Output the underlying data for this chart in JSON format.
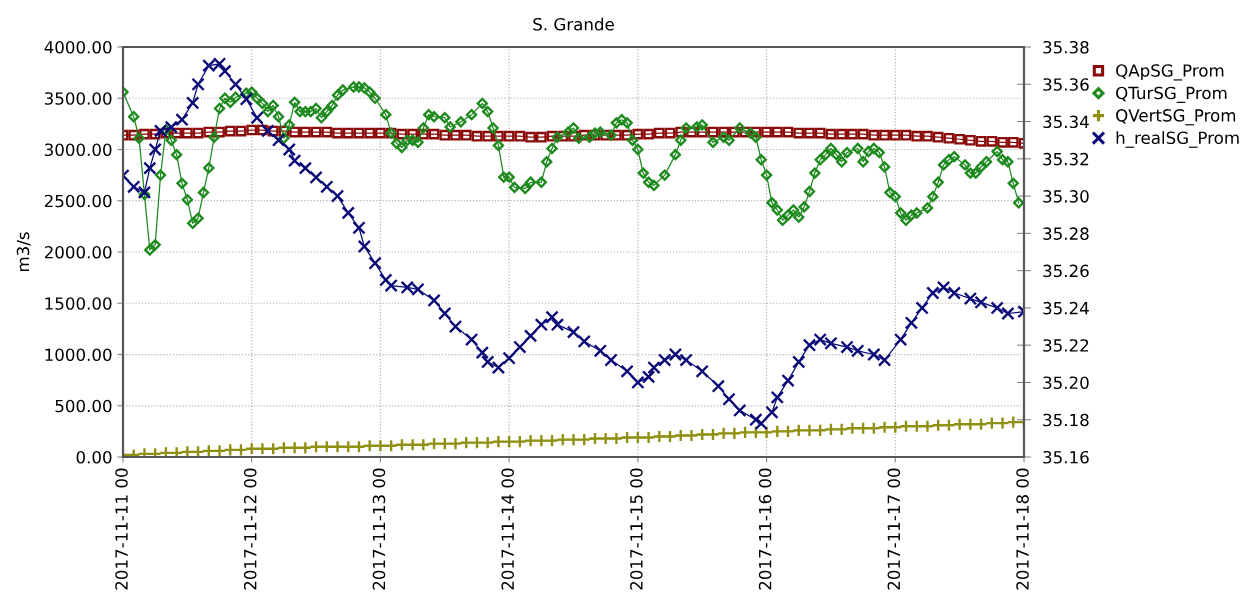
{
  "chart_data": {
    "type": "line",
    "title": "S. Grande",
    "ylabel": "m3/s",
    "legend": "right",
    "grid": true,
    "line_style": "solid",
    "xlim": [
      "2017-11-11T00:00",
      "2017-11-18T00:00"
    ],
    "xticks": [
      {
        "value": "2017-11-11T00:00",
        "label": "2017-11-11 00"
      },
      {
        "value": "2017-11-12T00:00",
        "label": "2017-11-12 00"
      },
      {
        "value": "2017-11-13T00:00",
        "label": "2017-11-13 00"
      },
      {
        "value": "2017-11-14T00:00",
        "label": "2017-11-14 00"
      },
      {
        "value": "2017-11-15T00:00",
        "label": "2017-11-15 00"
      },
      {
        "value": "2017-11-16T00:00",
        "label": "2017-11-16 00"
      },
      {
        "value": "2017-11-17T00:00",
        "label": "2017-11-17 00"
      },
      {
        "value": "2017-11-18T00:00",
        "label": "2017-11-18 00"
      }
    ],
    "ylim": [
      0,
      4000
    ],
    "yticks": [
      {
        "value": 0,
        "label": "0.00"
      },
      {
        "value": 500,
        "label": "500.00"
      },
      {
        "value": 1000,
        "label": "1000.00"
      },
      {
        "value": 1500,
        "label": "1500.00"
      },
      {
        "value": 2000,
        "label": "2000.00"
      },
      {
        "value": 2500,
        "label": "2500.00"
      },
      {
        "value": 3000,
        "label": "3000.00"
      },
      {
        "value": 3500,
        "label": "3500.00"
      },
      {
        "value": 4000,
        "label": "4000.00"
      }
    ],
    "y2lim": [
      35.16,
      35.38
    ],
    "y2ticks": [
      35.16,
      35.18,
      {
        "value": 35.2,
        "label": "35.20"
      },
      35.22,
      35.24,
      35.26,
      35.28,
      {
        "value": 35.3,
        "label": "35.30"
      },
      35.32,
      35.34,
      35.36,
      35.38
    ],
    "series": [
      {
        "name": "QApSG_Prom",
        "color": "#8b0a0a",
        "marker": "square",
        "x": [
          "2017-11-11T00:00",
          "2017-11-11T02:00",
          "2017-11-11T04:00",
          "2017-11-11T06:00",
          "2017-11-11T08:00",
          "2017-11-11T10:00",
          "2017-11-11T12:00",
          "2017-11-11T14:00",
          "2017-11-11T16:00",
          "2017-11-11T18:00",
          "2017-11-11T20:00",
          "2017-11-11T22:00",
          "2017-11-12T00:00",
          "2017-11-12T02:00",
          "2017-11-12T04:00",
          "2017-11-12T06:00",
          "2017-11-12T08:00",
          "2017-11-12T10:00",
          "2017-11-12T12:00",
          "2017-11-12T14:00",
          "2017-11-12T16:00",
          "2017-11-12T18:00",
          "2017-11-12T20:00",
          "2017-11-12T22:00",
          "2017-11-13T00:00",
          "2017-11-13T02:00",
          "2017-11-13T04:00",
          "2017-11-13T06:00",
          "2017-11-13T08:00",
          "2017-11-13T10:00",
          "2017-11-13T12:00",
          "2017-11-13T14:00",
          "2017-11-13T16:00",
          "2017-11-13T18:00",
          "2017-11-13T20:00",
          "2017-11-13T22:00",
          "2017-11-14T00:00",
          "2017-11-14T02:00",
          "2017-11-14T04:00",
          "2017-11-14T06:00",
          "2017-11-14T08:00",
          "2017-11-14T10:00",
          "2017-11-14T12:00",
          "2017-11-14T14:00",
          "2017-11-14T16:00",
          "2017-11-14T18:00",
          "2017-11-14T20:00",
          "2017-11-14T22:00",
          "2017-11-15T00:00",
          "2017-11-15T02:00",
          "2017-11-15T04:00",
          "2017-11-15T06:00",
          "2017-11-15T08:00",
          "2017-11-15T10:00",
          "2017-11-15T12:00",
          "2017-11-15T14:00",
          "2017-11-15T16:00",
          "2017-11-15T18:00",
          "2017-11-15T20:00",
          "2017-11-15T22:00",
          "2017-11-16T00:00",
          "2017-11-16T02:00",
          "2017-11-16T04:00",
          "2017-11-16T06:00",
          "2017-11-16T08:00",
          "2017-11-16T10:00",
          "2017-11-16T12:00",
          "2017-11-16T14:00",
          "2017-11-16T16:00",
          "2017-11-16T18:00",
          "2017-11-16T20:00",
          "2017-11-16T22:00",
          "2017-11-17T00:00",
          "2017-11-17T02:00",
          "2017-11-17T04:00",
          "2017-11-17T06:00",
          "2017-11-17T08:00",
          "2017-11-17T10:00",
          "2017-11-17T12:00",
          "2017-11-17T14:00",
          "2017-11-17T16:00",
          "2017-11-17T18:00",
          "2017-11-17T20:00",
          "2017-11-17T22:00",
          "2017-11-18T00:00"
        ],
        "values": [
          3140,
          3140,
          3150,
          3150,
          3160,
          3160,
          3160,
          3160,
          3170,
          3170,
          3180,
          3180,
          3190,
          3190,
          3180,
          3180,
          3170,
          3170,
          3170,
          3170,
          3160,
          3160,
          3160,
          3160,
          3160,
          3160,
          3150,
          3150,
          3150,
          3150,
          3140,
          3140,
          3140,
          3130,
          3130,
          3130,
          3130,
          3130,
          3120,
          3120,
          3130,
          3130,
          3130,
          3140,
          3140,
          3140,
          3140,
          3140,
          3150,
          3150,
          3160,
          3160,
          3170,
          3170,
          3170,
          3170,
          3170,
          3170,
          3170,
          3170,
          3170,
          3170,
          3170,
          3160,
          3160,
          3160,
          3150,
          3150,
          3150,
          3150,
          3140,
          3140,
          3140,
          3140,
          3130,
          3130,
          3120,
          3110,
          3100,
          3090,
          3080,
          3080,
          3070,
          3070,
          3060
        ]
      },
      {
        "name": "QTurSG_Prom",
        "color": "#1f8a1f",
        "marker": "diamond",
        "x": [
          "2017-11-11T00:00",
          "2017-11-11T02:00",
          "2017-11-11T03:00",
          "2017-11-11T04:00",
          "2017-11-11T05:00",
          "2017-11-11T06:00",
          "2017-11-11T07:00",
          "2017-11-11T08:00",
          "2017-11-11T09:00",
          "2017-11-11T10:00",
          "2017-11-11T11:00",
          "2017-11-11T12:00",
          "2017-11-11T13:00",
          "2017-11-11T14:00",
          "2017-11-11T15:00",
          "2017-11-11T16:00",
          "2017-11-11T17:00",
          "2017-11-11T18:00",
          "2017-11-11T19:00",
          "2017-11-11T20:00",
          "2017-11-11T21:00",
          "2017-11-11T23:00",
          "2017-11-12T00:00",
          "2017-11-12T01:00",
          "2017-11-12T02:00",
          "2017-11-12T03:00",
          "2017-11-12T04:00",
          "2017-11-12T05:00",
          "2017-11-12T06:00",
          "2017-11-12T07:00",
          "2017-11-12T08:00",
          "2017-11-12T09:00",
          "2017-11-12T10:00",
          "2017-11-12T11:00",
          "2017-11-12T12:00",
          "2017-11-12T13:00",
          "2017-11-12T14:00",
          "2017-11-12T15:00",
          "2017-11-12T16:00",
          "2017-11-12T17:00",
          "2017-11-12T19:00",
          "2017-11-12T20:00",
          "2017-11-12T21:00",
          "2017-11-12T22:00",
          "2017-11-12T23:00",
          "2017-11-13T01:00",
          "2017-11-13T02:00",
          "2017-11-13T03:00",
          "2017-11-13T04:00",
          "2017-11-13T05:00",
          "2017-11-13T06:00",
          "2017-11-13T07:00",
          "2017-11-13T08:00",
          "2017-11-13T09:00",
          "2017-11-13T10:00",
          "2017-11-13T12:00",
          "2017-11-13T13:00",
          "2017-11-13T15:00",
          "2017-11-13T17:00",
          "2017-11-13T19:00",
          "2017-11-13T20:00",
          "2017-11-13T21:00",
          "2017-11-13T22:00",
          "2017-11-13T23:00",
          "2017-11-14T00:00",
          "2017-11-14T01:00",
          "2017-11-14T03:00",
          "2017-11-14T04:00",
          "2017-11-14T06:00",
          "2017-11-14T07:00",
          "2017-11-14T08:00",
          "2017-11-14T09:00",
          "2017-11-14T11:00",
          "2017-11-14T12:00",
          "2017-11-14T13:00",
          "2017-11-14T15:00",
          "2017-11-14T16:00",
          "2017-11-14T17:00",
          "2017-11-14T19:00",
          "2017-11-14T20:00",
          "2017-11-14T21:00",
          "2017-11-14T22:00",
          "2017-11-14T23:00",
          "2017-11-15T00:00",
          "2017-11-15T01:00",
          "2017-11-15T02:00",
          "2017-11-15T03:00",
          "2017-11-15T05:00",
          "2017-11-15T07:00",
          "2017-11-15T08:00",
          "2017-11-15T09:00",
          "2017-11-15T11:00",
          "2017-11-15T12:00",
          "2017-11-15T14:00",
          "2017-11-15T16:00",
          "2017-11-15T17:00",
          "2017-11-15T19:00",
          "2017-11-15T21:00",
          "2017-11-15T22:00",
          "2017-11-15T23:00",
          "2017-11-16T00:00",
          "2017-11-16T01:00",
          "2017-11-16T02:00",
          "2017-11-16T03:00",
          "2017-11-16T04:00",
          "2017-11-16T05:00",
          "2017-11-16T06:00",
          "2017-11-16T07:00",
          "2017-11-16T08:00",
          "2017-11-16T09:00",
          "2017-11-16T10:00",
          "2017-11-16T11:00",
          "2017-11-16T12:00",
          "2017-11-16T13:00",
          "2017-11-16T14:00",
          "2017-11-16T15:00",
          "2017-11-16T17:00",
          "2017-11-16T18:00",
          "2017-11-16T19:00",
          "2017-11-16T20:00",
          "2017-11-16T21:00",
          "2017-11-16T22:00",
          "2017-11-16T23:00",
          "2017-11-17T00:00",
          "2017-11-17T01:00",
          "2017-11-17T02:00",
          "2017-11-17T03:00",
          "2017-11-17T04:00",
          "2017-11-17T06:00",
          "2017-11-17T07:00",
          "2017-11-17T08:00",
          "2017-11-17T09:00",
          "2017-11-17T10:00",
          "2017-11-17T11:00",
          "2017-11-17T13:00",
          "2017-11-17T14:00",
          "2017-11-17T15:00",
          "2017-11-17T16:00",
          "2017-11-17T17:00",
          "2017-11-17T19:00",
          "2017-11-17T20:00",
          "2017-11-17T21:00",
          "2017-11-17T22:00",
          "2017-11-17T23:00"
        ],
        "values": [
          3560,
          3320,
          3110,
          2560,
          2020,
          2070,
          2750,
          3190,
          3090,
          2950,
          2670,
          2510,
          2280,
          2330,
          2580,
          2820,
          3120,
          3400,
          3500,
          3460,
          3510,
          3550,
          3560,
          3500,
          3450,
          3370,
          3430,
          3320,
          3110,
          3240,
          3460,
          3370,
          3370,
          3370,
          3400,
          3310,
          3370,
          3430,
          3530,
          3580,
          3610,
          3610,
          3600,
          3560,
          3500,
          3340,
          3160,
          3060,
          3020,
          3090,
          3090,
          3070,
          3210,
          3340,
          3320,
          3310,
          3220,
          3270,
          3340,
          3450,
          3370,
          3210,
          3040,
          2730,
          2730,
          2630,
          2620,
          2680,
          2680,
          2880,
          3010,
          3120,
          3170,
          3210,
          3110,
          3120,
          3160,
          3170,
          3140,
          3260,
          3290,
          3260,
          3090,
          3000,
          2770,
          2680,
          2650,
          2750,
          2950,
          3090,
          3210,
          3220,
          3240,
          3070,
          3120,
          3090,
          3210,
          3160,
          3120,
          2900,
          2750,
          2480,
          2410,
          2310,
          2360,
          2410,
          2340,
          2440,
          2590,
          2770,
          2900,
          2950,
          3010,
          2950,
          2880,
          2970,
          3010,
          2880,
          2980,
          3010,
          2970,
          2830,
          2580,
          2540,
          2380,
          2310,
          2360,
          2380,
          2430,
          2540,
          2680,
          2850,
          2900,
          2930,
          2850,
          2770,
          2770,
          2830,
          2880,
          2980,
          2900,
          2880,
          2670,
          2480
        ]
      },
      {
        "name": "QVertSG_Prom",
        "color": "#8f8f10",
        "marker": "plus",
        "x": [
          "2017-11-11T00:00",
          "2017-11-11T02:00",
          "2017-11-11T04:00",
          "2017-11-11T06:00",
          "2017-11-11T08:00",
          "2017-11-11T10:00",
          "2017-11-11T12:00",
          "2017-11-11T14:00",
          "2017-11-11T16:00",
          "2017-11-11T18:00",
          "2017-11-11T20:00",
          "2017-11-11T22:00",
          "2017-11-12T00:00",
          "2017-11-12T02:00",
          "2017-11-12T04:00",
          "2017-11-12T06:00",
          "2017-11-12T08:00",
          "2017-11-12T10:00",
          "2017-11-12T12:00",
          "2017-11-12T14:00",
          "2017-11-12T16:00",
          "2017-11-12T18:00",
          "2017-11-12T20:00",
          "2017-11-12T22:00",
          "2017-11-13T00:00",
          "2017-11-13T02:00",
          "2017-11-13T04:00",
          "2017-11-13T06:00",
          "2017-11-13T08:00",
          "2017-11-13T10:00",
          "2017-11-13T12:00",
          "2017-11-13T14:00",
          "2017-11-13T16:00",
          "2017-11-13T18:00",
          "2017-11-13T20:00",
          "2017-11-13T22:00",
          "2017-11-14T00:00",
          "2017-11-14T02:00",
          "2017-11-14T04:00",
          "2017-11-14T06:00",
          "2017-11-14T08:00",
          "2017-11-14T10:00",
          "2017-11-14T12:00",
          "2017-11-14T14:00",
          "2017-11-14T16:00",
          "2017-11-14T18:00",
          "2017-11-14T20:00",
          "2017-11-14T22:00",
          "2017-11-15T00:00",
          "2017-11-15T02:00",
          "2017-11-15T04:00",
          "2017-11-15T06:00",
          "2017-11-15T08:00",
          "2017-11-15T10:00",
          "2017-11-15T12:00",
          "2017-11-15T14:00",
          "2017-11-15T16:00",
          "2017-11-15T18:00",
          "2017-11-15T20:00",
          "2017-11-15T22:00",
          "2017-11-16T00:00",
          "2017-11-16T02:00",
          "2017-11-16T04:00",
          "2017-11-16T06:00",
          "2017-11-16T08:00",
          "2017-11-16T10:00",
          "2017-11-16T12:00",
          "2017-11-16T14:00",
          "2017-11-16T16:00",
          "2017-11-16T18:00",
          "2017-11-16T20:00",
          "2017-11-16T22:00",
          "2017-11-17T00:00",
          "2017-11-17T02:00",
          "2017-11-17T04:00",
          "2017-11-17T06:00",
          "2017-11-17T08:00",
          "2017-11-17T10:00",
          "2017-11-17T12:00",
          "2017-11-17T14:00",
          "2017-11-17T16:00",
          "2017-11-17T18:00",
          "2017-11-17T20:00",
          "2017-11-17T22:00",
          "2017-11-18T00:00"
        ],
        "values": [
          20,
          20,
          30,
          30,
          40,
          40,
          50,
          50,
          60,
          60,
          70,
          70,
          80,
          80,
          80,
          90,
          90,
          90,
          100,
          100,
          100,
          100,
          100,
          110,
          110,
          110,
          120,
          120,
          120,
          130,
          130,
          130,
          140,
          140,
          140,
          150,
          150,
          150,
          160,
          160,
          160,
          170,
          170,
          170,
          180,
          180,
          180,
          190,
          190,
          190,
          200,
          200,
          210,
          210,
          220,
          220,
          230,
          230,
          240,
          240,
          240,
          250,
          250,
          260,
          260,
          260,
          270,
          270,
          280,
          280,
          280,
          290,
          290,
          300,
          300,
          300,
          310,
          310,
          320,
          320,
          320,
          330,
          330,
          340,
          340
        ]
      },
      {
        "name": "h_realSG_Prom",
        "color": "#0a0a78",
        "marker": "cross",
        "axis": "y2",
        "x": [
          "2017-11-11T00:00",
          "2017-11-11T02:00",
          "2017-11-11T04:00",
          "2017-11-11T05:00",
          "2017-11-11T06:00",
          "2017-11-11T07:00",
          "2017-11-11T09:00",
          "2017-11-11T11:00",
          "2017-11-11T13:00",
          "2017-11-11T14:00",
          "2017-11-11T16:00",
          "2017-11-11T18:00",
          "2017-11-11T19:00",
          "2017-11-11T21:00",
          "2017-11-11T23:00",
          "2017-11-12T01:00",
          "2017-11-12T03:00",
          "2017-11-12T05:00",
          "2017-11-12T07:00",
          "2017-11-12T08:00",
          "2017-11-12T10:00",
          "2017-11-12T12:00",
          "2017-11-12T14:00",
          "2017-11-12T16:00",
          "2017-11-12T18:00",
          "2017-11-12T20:00",
          "2017-11-12T21:00",
          "2017-11-12T23:00",
          "2017-11-13T01:00",
          "2017-11-13T02:00",
          "2017-11-13T05:00",
          "2017-11-13T07:00",
          "2017-11-13T10:00",
          "2017-11-13T12:00",
          "2017-11-13T14:00",
          "2017-11-13T17:00",
          "2017-11-13T19:00",
          "2017-11-13T20:00",
          "2017-11-13T22:00",
          "2017-11-14T00:00",
          "2017-11-14T02:00",
          "2017-11-14T04:00",
          "2017-11-14T06:00",
          "2017-11-14T08:00",
          "2017-11-14T09:00",
          "2017-11-14T12:00",
          "2017-11-14T14:00",
          "2017-11-14T17:00",
          "2017-11-14T19:00",
          "2017-11-14T22:00",
          "2017-11-15T00:00",
          "2017-11-15T02:00",
          "2017-11-15T03:00",
          "2017-11-15T05:00",
          "2017-11-15T07:00",
          "2017-11-15T09:00",
          "2017-11-15T12:00",
          "2017-11-15T15:00",
          "2017-11-15T17:00",
          "2017-11-15T19:00",
          "2017-11-15T22:00",
          "2017-11-15T23:00",
          "2017-11-16T01:00",
          "2017-11-16T02:00",
          "2017-11-16T04:00",
          "2017-11-16T06:00",
          "2017-11-16T08:00",
          "2017-11-16T10:00",
          "2017-11-16T12:00",
          "2017-11-16T15:00",
          "2017-11-16T17:00",
          "2017-11-16T20:00",
          "2017-11-16T22:00",
          "2017-11-17T01:00",
          "2017-11-17T03:00",
          "2017-11-17T05:00",
          "2017-11-17T07:00",
          "2017-11-17T09:00",
          "2017-11-17T11:00",
          "2017-11-17T14:00",
          "2017-11-17T16:00",
          "2017-11-17T19:00",
          "2017-11-17T21:00",
          "2017-11-18T00:00"
        ],
        "values": [
          35.311,
          35.305,
          35.302,
          35.315,
          35.325,
          35.335,
          35.337,
          35.341,
          35.35,
          35.36,
          35.37,
          35.371,
          35.367,
          35.36,
          35.352,
          35.342,
          35.335,
          35.33,
          35.325,
          35.319,
          35.315,
          35.31,
          35.305,
          35.3,
          35.291,
          35.283,
          35.273,
          35.264,
          35.255,
          35.252,
          35.251,
          35.25,
          35.244,
          35.237,
          35.23,
          35.223,
          35.216,
          35.211,
          35.208,
          35.213,
          35.219,
          35.225,
          35.231,
          35.235,
          35.231,
          35.227,
          35.222,
          35.217,
          35.212,
          35.206,
          35.2,
          35.203,
          35.208,
          35.212,
          35.215,
          35.212,
          35.206,
          35.198,
          35.191,
          35.185,
          35.18,
          35.178,
          35.184,
          35.192,
          35.201,
          35.211,
          35.22,
          35.223,
          35.221,
          35.219,
          35.217,
          35.215,
          35.212,
          35.223,
          35.232,
          35.24,
          35.248,
          35.251,
          35.248,
          35.245,
          35.243,
          35.24,
          35.237,
          35.238
        ]
      }
    ]
  }
}
